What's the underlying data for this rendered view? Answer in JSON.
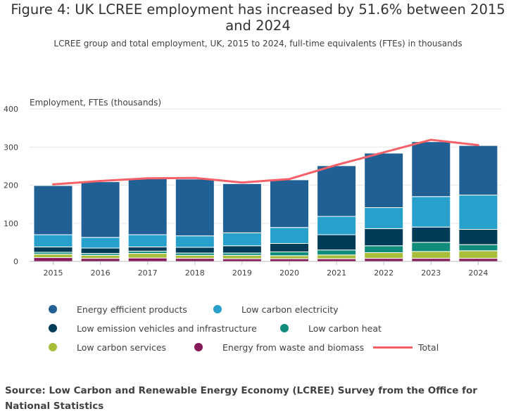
{
  "title": "Figure 4: UK LCREE employment has increased by 51.6% between 2015 and 2024",
  "subtitle": "LCREE group and total employment, UK, 2015 to 2024, full-time equivalents (FTEs) in thousands",
  "source": "Source: Low Carbon and Renewable Energy Economy (LCREE) Survey from the Office for National Statistics",
  "chart_data": {
    "type": "bar",
    "stacked": true,
    "ylabel": "Employment, FTEs (thousands)",
    "ylim": [
      0,
      400
    ],
    "yticks": [
      "0",
      "100",
      "200",
      "300",
      "400"
    ],
    "grid": true,
    "legend_position": "bottom",
    "categories": [
      "2015",
      "2016",
      "2017",
      "2018",
      "2019",
      "2020",
      "2021",
      "2022",
      "2023",
      "2024"
    ],
    "series": [
      {
        "name": "Energy from waste and biomass",
        "color": "#871A5B",
        "values": [
          10,
          8,
          9,
          8,
          7,
          7,
          7,
          8,
          8,
          8
        ]
      },
      {
        "name": "Low carbon services",
        "color": "#A8BD3A",
        "values": [
          9,
          8,
          12,
          8,
          9,
          8,
          10,
          15,
          18,
          20
        ]
      },
      {
        "name": "Low carbon heat",
        "color": "#118C7B",
        "values": [
          5,
          5,
          6,
          6,
          6,
          10,
          13,
          18,
          24,
          16
        ]
      },
      {
        "name": "Low emission vehicles and infrastructure",
        "color": "#003C57",
        "values": [
          14,
          14,
          11,
          15,
          19,
          22,
          40,
          45,
          40,
          40
        ]
      },
      {
        "name": "Low carbon electricity",
        "color": "#27A0CC",
        "values": [
          32,
          28,
          32,
          30,
          34,
          42,
          48,
          55,
          80,
          90
        ]
      },
      {
        "name": "Energy efficient products",
        "color": "#206095",
        "values": [
          129,
          146,
          147,
          149,
          129,
          125,
          133,
          143,
          144,
          130
        ]
      }
    ],
    "total": {
      "name": "Total",
      "color": "#F66068",
      "values": [
        202,
        211,
        218,
        219,
        207,
        216,
        253,
        286,
        319,
        305
      ]
    }
  },
  "legend": {
    "items": [
      {
        "label": "Energy efficient products",
        "color": "#206095"
      },
      {
        "label": "Low carbon electricity",
        "color": "#27A0CC"
      },
      {
        "label": "Low emission vehicles and infrastructure",
        "color": "#003C57"
      },
      {
        "label": "Low carbon heat",
        "color": "#118C7B"
      },
      {
        "label": "Low carbon services",
        "color": "#A8BD3A"
      },
      {
        "label": "Energy from waste and biomass",
        "color": "#871A5B"
      },
      {
        "label": "Total",
        "color": "#F66068"
      }
    ]
  }
}
